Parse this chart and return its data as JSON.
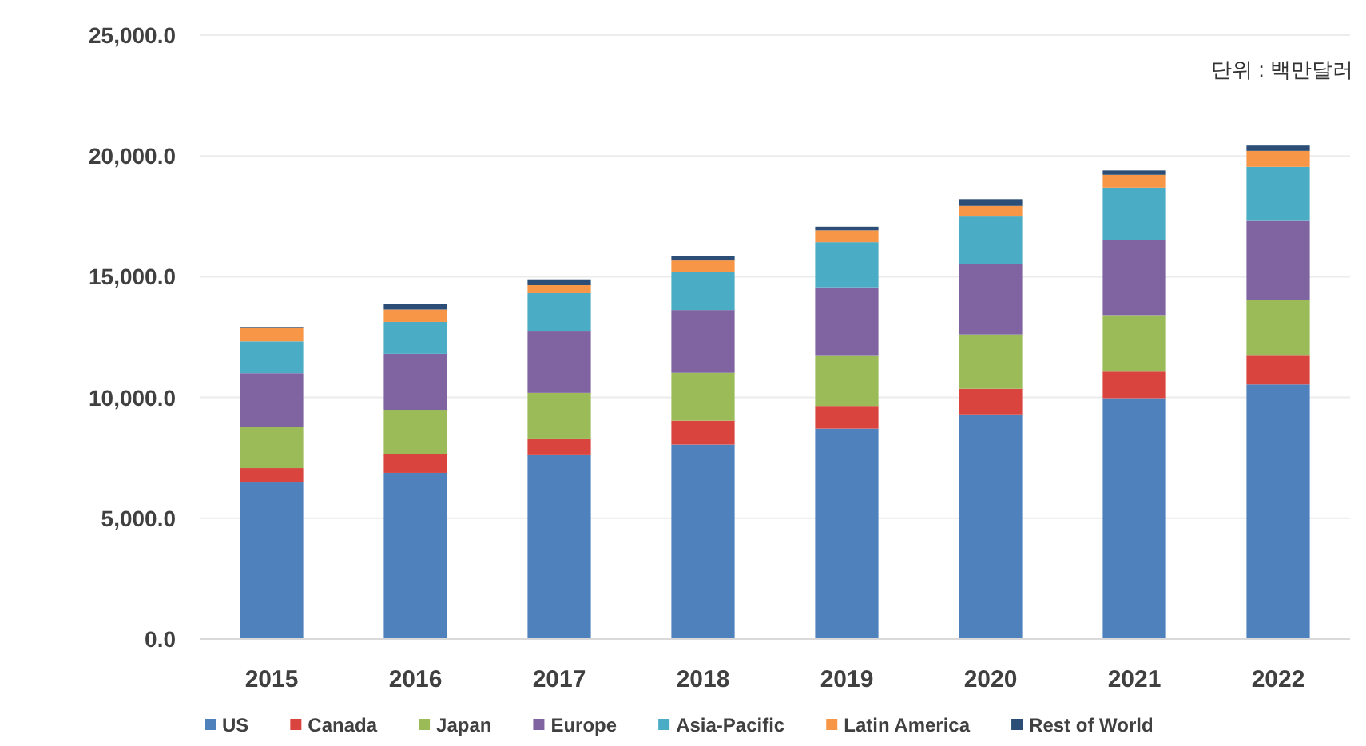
{
  "chart_data": {
    "type": "bar",
    "stacked": true,
    "categories": [
      "2015",
      "2016",
      "2017",
      "2018",
      "2019",
      "2020",
      "2021",
      "2022"
    ],
    "series": [
      {
        "name": "US",
        "color": "#4f81bd",
        "values": [
          6480,
          6880,
          7610,
          8050,
          8710,
          9300,
          9970,
          10540
        ]
      },
      {
        "name": "Canada",
        "color": "#d9443f",
        "values": [
          595,
          780,
          660,
          990,
          940,
          1060,
          1100,
          1190
        ]
      },
      {
        "name": "Japan",
        "color": "#9bbb59",
        "values": [
          1720,
          1830,
          1920,
          1980,
          2070,
          2250,
          2310,
          2310
        ]
      },
      {
        "name": "Europe",
        "color": "#8064a2",
        "values": [
          2210,
          2320,
          2540,
          2600,
          2840,
          2900,
          3150,
          3270
        ]
      },
      {
        "name": "Asia-Pacific",
        "color": "#4bacc6",
        "values": [
          1320,
          1320,
          1590,
          1590,
          1870,
          1980,
          2160,
          2240
        ]
      },
      {
        "name": "Latin America",
        "color": "#f79646",
        "values": [
          550,
          510,
          330,
          460,
          490,
          440,
          530,
          660
        ]
      },
      {
        "name": "Rest of World",
        "color": "#2c4d75",
        "values": [
          50,
          220,
          240,
          200,
          150,
          280,
          180,
          220
        ]
      }
    ],
    "ylim": [
      0,
      25000
    ],
    "yticks": [
      {
        "value": 0,
        "label": "0.0"
      },
      {
        "value": 5000,
        "label": "5,000.0"
      },
      {
        "value": 10000,
        "label": "10,000.0"
      },
      {
        "value": 15000,
        "label": "15,000.0"
      },
      {
        "value": 20000,
        "label": "20,000.0"
      },
      {
        "value": 25000,
        "label": "25,000.0"
      }
    ],
    "grid": "y",
    "legend": "bottom",
    "annotations": [
      "단위 : 백만달러"
    ]
  }
}
